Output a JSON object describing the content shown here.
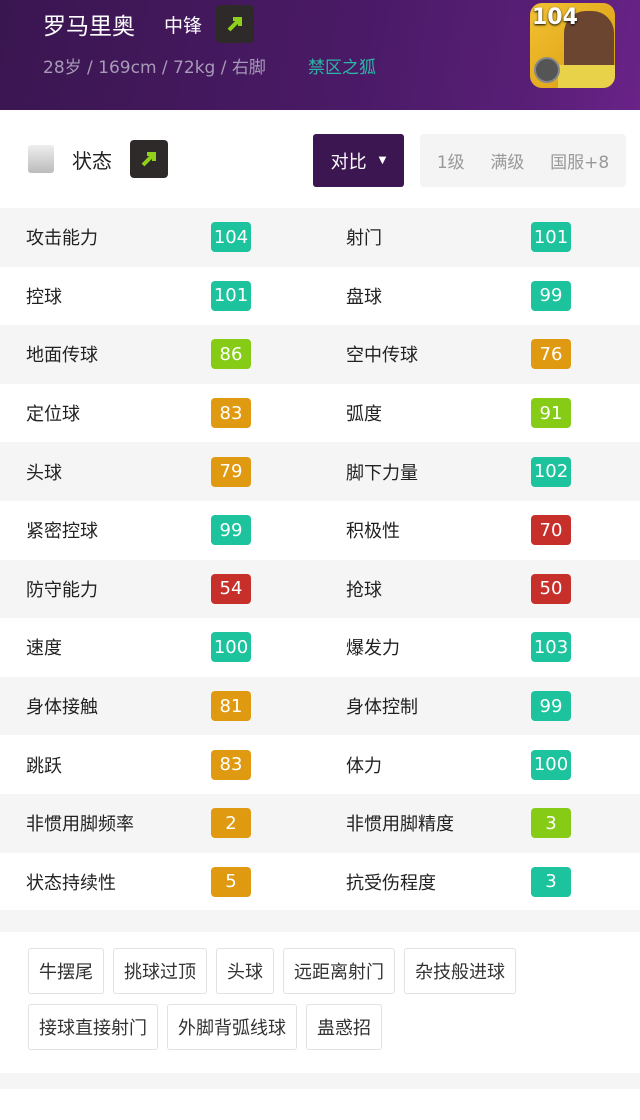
{
  "player": {
    "name": "罗马里奥",
    "position": "中锋",
    "meta": "28岁 / 169cm / 72kg / 右脚",
    "play_style": "禁区之狐",
    "rating": "104"
  },
  "status": {
    "title": "状态",
    "compare_label": "对比",
    "levels": [
      "1级",
      "满级",
      "国服+8"
    ]
  },
  "colors": {
    "teal": "#1cc39c",
    "green": "#86cc16",
    "orange": "#e09a12",
    "red": "#c7302a",
    "accent": "#3c1650"
  },
  "stats": [
    [
      {
        "label": "攻击能力",
        "value": "104",
        "color": "teal"
      },
      {
        "label": "射门",
        "value": "101",
        "color": "teal"
      }
    ],
    [
      {
        "label": "控球",
        "value": "101",
        "color": "teal"
      },
      {
        "label": "盘球",
        "value": "99",
        "color": "teal"
      }
    ],
    [
      {
        "label": "地面传球",
        "value": "86",
        "color": "green"
      },
      {
        "label": "空中传球",
        "value": "76",
        "color": "orange"
      }
    ],
    [
      {
        "label": "定位球",
        "value": "83",
        "color": "orange"
      },
      {
        "label": "弧度",
        "value": "91",
        "color": "green"
      }
    ],
    [
      {
        "label": "头球",
        "value": "79",
        "color": "orange"
      },
      {
        "label": "脚下力量",
        "value": "102",
        "color": "teal"
      }
    ],
    [
      {
        "label": "紧密控球",
        "value": "99",
        "color": "teal"
      },
      {
        "label": "积极性",
        "value": "70",
        "color": "red"
      }
    ],
    [
      {
        "label": "防守能力",
        "value": "54",
        "color": "red"
      },
      {
        "label": "抢球",
        "value": "50",
        "color": "red"
      }
    ],
    [
      {
        "label": "速度",
        "value": "100",
        "color": "teal"
      },
      {
        "label": "爆发力",
        "value": "103",
        "color": "teal"
      }
    ],
    [
      {
        "label": "身体接触",
        "value": "81",
        "color": "orange"
      },
      {
        "label": "身体控制",
        "value": "99",
        "color": "teal"
      }
    ],
    [
      {
        "label": "跳跃",
        "value": "83",
        "color": "orange"
      },
      {
        "label": "体力",
        "value": "100",
        "color": "teal"
      }
    ],
    [
      {
        "label": "非惯用脚频率",
        "value": "2",
        "color": "orange"
      },
      {
        "label": "非惯用脚精度",
        "value": "3",
        "color": "green"
      }
    ],
    [
      {
        "label": "状态持续性",
        "value": "5",
        "color": "orange"
      },
      {
        "label": "抗受伤程度",
        "value": "3",
        "color": "teal"
      }
    ]
  ],
  "skills": [
    "牛摆尾",
    "挑球过顶",
    "头球",
    "远距离射门",
    "杂技般进球",
    "接球直接射门",
    "外脚背弧线球",
    "蛊惑招"
  ]
}
